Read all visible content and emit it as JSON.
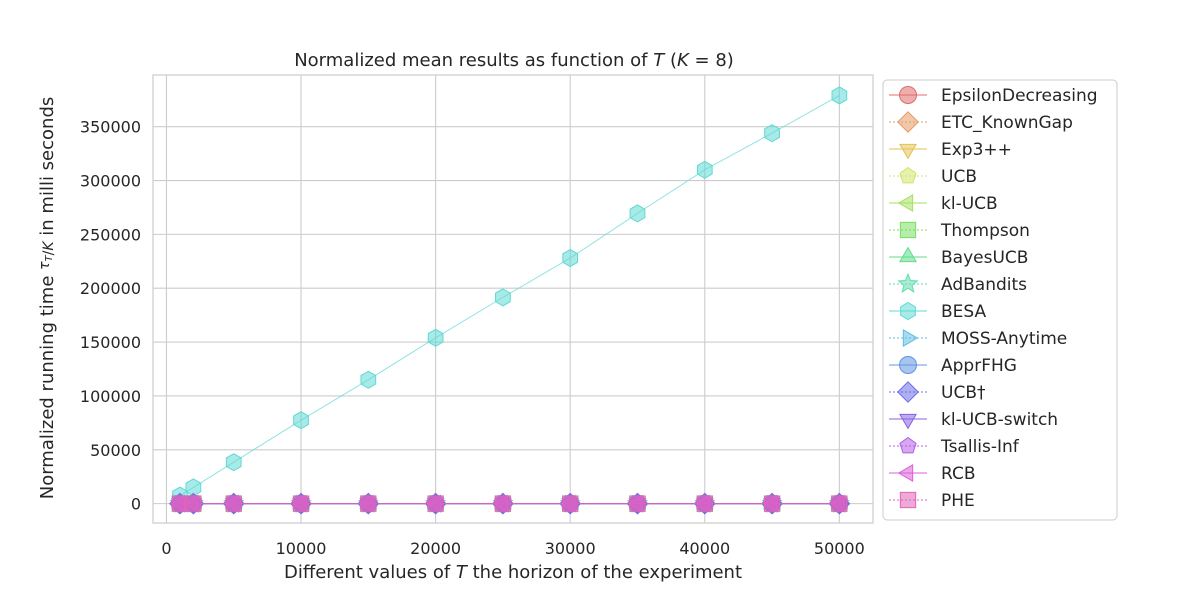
{
  "chart_data": {
    "type": "line",
    "title": "Normalized mean results as function of T (K = 8)",
    "xlabel": "Different values of T the horizon of the experiment",
    "ylabel": "Normalized running time τT/K in milli seconds",
    "x": [
      1000,
      2000,
      5000,
      10000,
      15000,
      20000,
      25000,
      30000,
      35000,
      40000,
      45000,
      50000
    ],
    "xlim": [
      -1000,
      52500
    ],
    "ylim": [
      -18000,
      398000
    ],
    "xticks": [
      0,
      10000,
      20000,
      30000,
      40000,
      50000
    ],
    "xtick_labels": [
      "0",
      "10000",
      "20000",
      "30000",
      "40000",
      "50000"
    ],
    "yticks": [
      0,
      50000,
      100000,
      150000,
      200000,
      250000,
      300000,
      350000
    ],
    "ytick_labels": [
      "0",
      "50000",
      "100000",
      "150000",
      "200000",
      "250000",
      "300000",
      "350000"
    ],
    "grid": true,
    "legend_position": "right",
    "series": [
      {
        "name": "EpsilonDecreasing",
        "color": "#e06c6c",
        "marker": "circle",
        "values": [
          0,
          0,
          0,
          0,
          0,
          0,
          0,
          0,
          0,
          0,
          0,
          0
        ]
      },
      {
        "name": "ETC_KnownGap",
        "color": "#e49a62",
        "marker": "diamond",
        "values": [
          0,
          0,
          0,
          0,
          0,
          0,
          0,
          0,
          0,
          0,
          0,
          0
        ]
      },
      {
        "name": "Exp3++",
        "color": "#e3c256",
        "marker": "triangle-down",
        "values": [
          0,
          0,
          0,
          0,
          0,
          0,
          0,
          0,
          0,
          0,
          0,
          0
        ]
      },
      {
        "name": "UCB",
        "color": "#d3e36a",
        "marker": "pentagon",
        "values": [
          0,
          0,
          0,
          0,
          0,
          0,
          0,
          0,
          0,
          0,
          0,
          0
        ]
      },
      {
        "name": "kl-UCB",
        "color": "#a6e063",
        "marker": "triangle-left",
        "values": [
          0,
          0,
          0,
          0,
          0,
          0,
          0,
          0,
          0,
          0,
          0,
          0
        ]
      },
      {
        "name": "Thompson",
        "color": "#79de62",
        "marker": "square",
        "values": [
          0,
          0,
          0,
          0,
          0,
          0,
          0,
          0,
          0,
          0,
          0,
          0
        ]
      },
      {
        "name": "BayesUCB",
        "color": "#5fdc8a",
        "marker": "triangle-up",
        "values": [
          0,
          0,
          0,
          0,
          0,
          0,
          0,
          0,
          0,
          0,
          0,
          0
        ]
      },
      {
        "name": "AdBandits",
        "color": "#5edcaf",
        "marker": "star",
        "values": [
          0,
          0,
          0,
          0,
          0,
          0,
          0,
          0,
          0,
          0,
          0,
          0
        ]
      },
      {
        "name": "BESA",
        "color": "#5fd9d4",
        "marker": "hexagon",
        "values": [
          7500,
          15000,
          38500,
          77500,
          115000,
          154000,
          191500,
          228000,
          269500,
          310000,
          344000,
          379000
        ]
      },
      {
        "name": "MOSS-Anytime",
        "color": "#5fbde3",
        "marker": "triangle-right",
        "values": [
          0,
          0,
          0,
          0,
          0,
          0,
          0,
          0,
          0,
          0,
          0,
          0
        ]
      },
      {
        "name": "ApprFHG",
        "color": "#6195e3",
        "marker": "circle",
        "values": [
          0,
          0,
          0,
          0,
          0,
          0,
          0,
          0,
          0,
          0,
          0,
          0
        ]
      },
      {
        "name": "UCB†",
        "color": "#6c6ce6",
        "marker": "diamond",
        "values": [
          0,
          0,
          0,
          0,
          0,
          0,
          0,
          0,
          0,
          0,
          0,
          0
        ]
      },
      {
        "name": "kl-UCB-switch",
        "color": "#8b62e6",
        "marker": "triangle-down",
        "values": [
          0,
          0,
          0,
          0,
          0,
          0,
          0,
          0,
          0,
          0,
          0,
          0
        ]
      },
      {
        "name": "Tsallis-Inf",
        "color": "#b45fe3",
        "marker": "pentagon",
        "values": [
          0,
          0,
          0,
          0,
          0,
          0,
          0,
          0,
          0,
          0,
          0,
          0
        ]
      },
      {
        "name": "RCB",
        "color": "#dd5fdb",
        "marker": "triangle-left",
        "values": [
          0,
          0,
          0,
          0,
          0,
          0,
          0,
          0,
          0,
          0,
          0,
          0
        ]
      },
      {
        "name": "PHE",
        "color": "#e064b6",
        "marker": "square",
        "values": [
          0,
          0,
          0,
          0,
          0,
          0,
          0,
          0,
          0,
          0,
          0,
          0
        ]
      }
    ]
  }
}
